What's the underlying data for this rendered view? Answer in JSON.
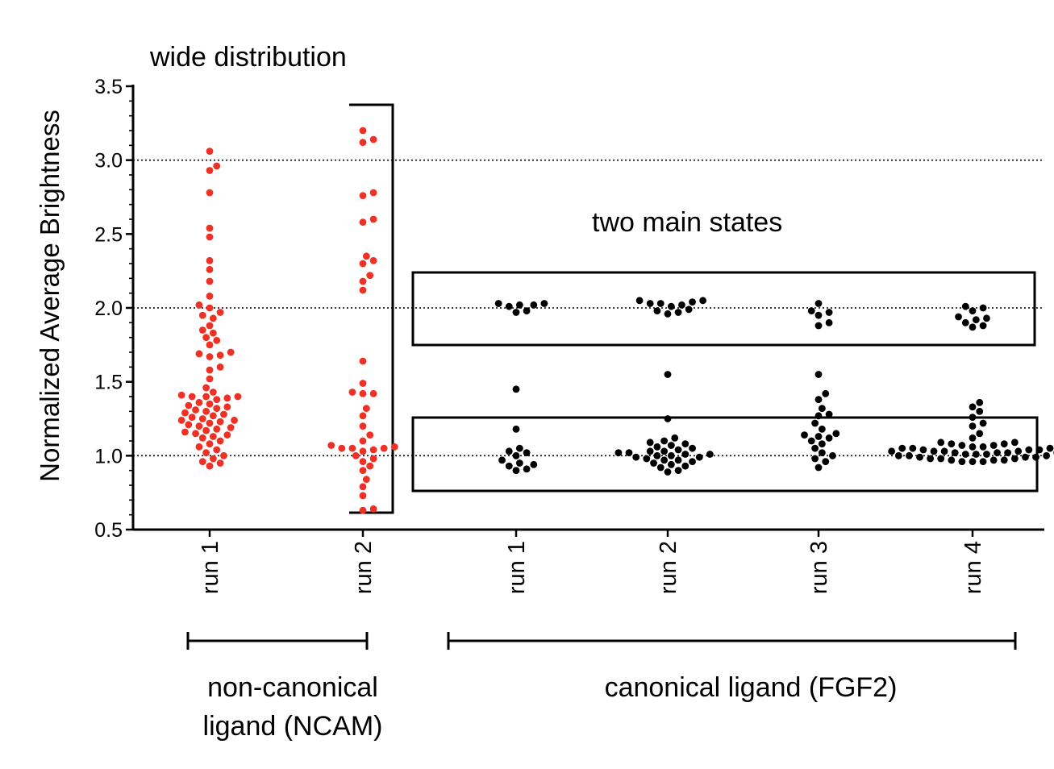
{
  "chart_data": {
    "type": "scatter",
    "ylabel": "Normalized Average Brightness",
    "ylim": [
      0.5,
      3.5
    ],
    "yticks": [
      "0.5",
      "1.0",
      "1.5",
      "2.0",
      "2.5",
      "3.0",
      "3.5"
    ],
    "reference_lines": [
      1.0,
      2.0,
      3.0
    ],
    "categories": [
      "run 1",
      "run 2",
      "run 1",
      "run 2",
      "run 3",
      "run 4"
    ],
    "groups": [
      {
        "label": "non-canonical\nligand (NCAM)",
        "categories": [
          0,
          1
        ],
        "color": "#ee3124"
      },
      {
        "label": "canonical ligand (FGF2)",
        "categories": [
          2,
          3,
          4,
          5
        ],
        "color": "#000000"
      }
    ],
    "annotations": [
      {
        "text": "wide distribution"
      },
      {
        "text": "two main states"
      }
    ],
    "series": [
      {
        "values": [
          3.06,
          2.96,
          2.93,
          2.78,
          2.54,
          2.48,
          2.32,
          2.26,
          2.18,
          2.08,
          2.02,
          2.0,
          1.97,
          1.95,
          1.93,
          1.88,
          1.85,
          1.83,
          1.8,
          1.78,
          1.75,
          1.7,
          1.69,
          1.68,
          1.67,
          1.6,
          1.58,
          1.52,
          1.46,
          1.43,
          1.41,
          1.4,
          1.4,
          1.4,
          1.39,
          1.38,
          1.36,
          1.35,
          1.34,
          1.33,
          1.32,
          1.31,
          1.3,
          1.29,
          1.28,
          1.27,
          1.26,
          1.25,
          1.24,
          1.24,
          1.23,
          1.22,
          1.21,
          1.2,
          1.19,
          1.18,
          1.17,
          1.16,
          1.15,
          1.14,
          1.13,
          1.12,
          1.1,
          1.08,
          1.06,
          1.04,
          1.02,
          1.0,
          0.98,
          0.96,
          0.95,
          0.93
        ]
      },
      {
        "values": [
          3.2,
          3.14,
          3.12,
          2.78,
          2.76,
          2.6,
          2.58,
          2.35,
          2.32,
          2.3,
          2.22,
          2.18,
          2.12,
          1.64,
          1.49,
          1.43,
          1.42,
          1.42,
          1.32,
          1.27,
          1.2,
          1.14,
          1.1,
          1.07,
          1.06,
          1.05,
          1.05,
          1.05,
          1.04,
          1.03,
          1.0,
          0.98,
          0.96,
          0.93,
          0.9,
          0.84,
          0.79,
          0.73,
          0.64,
          0.63
        ]
      },
      {
        "values": [
          2.03,
          2.03,
          2.02,
          2.02,
          2.01,
          1.98,
          1.97,
          1.45,
          1.18,
          1.05,
          1.03,
          1.02,
          1.0,
          0.97,
          0.95,
          0.94,
          0.93,
          0.91,
          0.9
        ]
      },
      {
        "values": [
          2.05,
          2.05,
          2.04,
          2.03,
          2.03,
          2.02,
          2.01,
          1.99,
          1.98,
          1.97,
          1.96,
          1.55,
          1.25,
          1.12,
          1.1,
          1.09,
          1.08,
          1.07,
          1.06,
          1.05,
          1.04,
          1.03,
          1.03,
          1.02,
          1.02,
          1.01,
          1.01,
          1.0,
          1.0,
          0.99,
          0.99,
          0.98,
          0.97,
          0.97,
          0.96,
          0.95,
          0.94,
          0.93,
          0.92,
          0.9,
          0.89
        ]
      },
      {
        "values": [
          2.03,
          1.98,
          1.97,
          1.95,
          1.9,
          1.88,
          1.55,
          1.42,
          1.38,
          1.32,
          1.28,
          1.27,
          1.22,
          1.18,
          1.15,
          1.14,
          1.13,
          1.12,
          1.1,
          1.08,
          1.05,
          1.02,
          1.0,
          0.98,
          0.96,
          0.92
        ]
      },
      {
        "values": [
          2.01,
          2.0,
          1.98,
          1.94,
          1.93,
          1.92,
          1.9,
          1.88,
          1.87,
          1.36,
          1.33,
          1.3,
          1.26,
          1.22,
          1.2,
          1.15,
          1.12,
          1.09,
          1.09,
          1.08,
          1.08,
          1.07,
          1.07,
          1.06,
          1.06,
          1.05,
          1.05,
          1.05,
          1.04,
          1.04,
          1.04,
          1.03,
          1.03,
          1.03,
          1.03,
          1.02,
          1.02,
          1.02,
          1.02,
          1.01,
          1.01,
          1.01,
          1.0,
          1.0,
          1.0,
          0.99,
          0.99,
          0.99,
          0.98,
          0.98,
          0.98,
          0.97,
          0.97,
          0.97,
          0.96,
          0.96,
          0.96
        ]
      }
    ]
  }
}
